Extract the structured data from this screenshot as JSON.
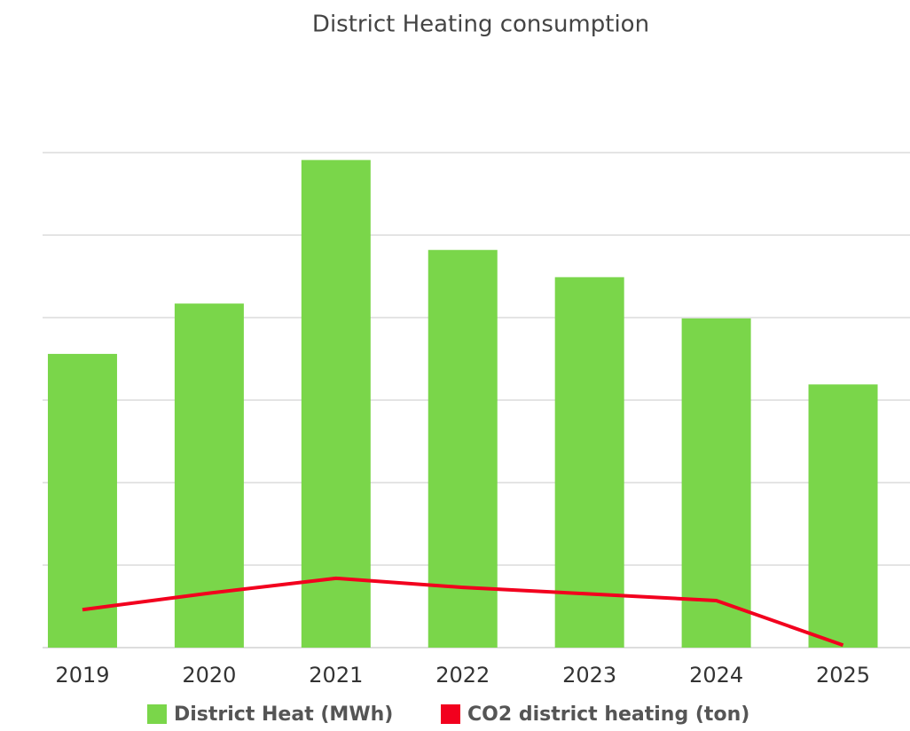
{
  "chart_data": {
    "type": "bar_line",
    "title": "District Heating consumption",
    "categories": [
      "2019",
      "2020",
      "2021",
      "2022",
      "2023",
      "2024",
      "2025"
    ],
    "series": [
      {
        "name": "District Heat (MWh)",
        "color": "#7ad64a",
        "type": "bar",
        "values": [
          3.56,
          4.17,
          5.91,
          4.82,
          4.49,
          3.99,
          3.19
        ]
      },
      {
        "name": "CO2 district heating (ton)",
        "color": "#f2001e",
        "type": "line",
        "values": [
          0.46,
          0.66,
          0.84,
          0.73,
          0.65,
          0.57,
          0.03
        ]
      }
    ],
    "ylim": [
      0,
      6
    ],
    "yticks": [
      0,
      1,
      2,
      3,
      4,
      5,
      6
    ],
    "grid": true,
    "legend": "bottom"
  }
}
